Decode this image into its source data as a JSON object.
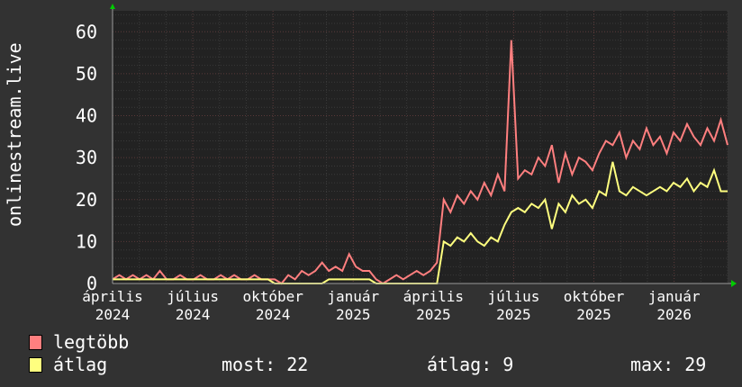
{
  "chart_data": {
    "type": "line",
    "ylabel": "onlinestream.live",
    "ylim": [
      0,
      65
    ],
    "yticks": [
      0,
      10,
      20,
      30,
      40,
      50,
      60
    ],
    "xtick_months": [
      "április",
      "július",
      "október",
      "január",
      "április",
      "július",
      "október",
      "január"
    ],
    "xtick_years": [
      "2024",
      "2024",
      "2024",
      "2025",
      "2025",
      "2025",
      "2025",
      "2026"
    ],
    "grid": true,
    "legend_position": "bottom-left",
    "series": [
      {
        "name": "legtöbb",
        "color": "#ff7f7f",
        "values": [
          1,
          2,
          1,
          2,
          1,
          2,
          1,
          3,
          1,
          1,
          2,
          1,
          1,
          2,
          1,
          1,
          2,
          1,
          2,
          1,
          1,
          2,
          1,
          1,
          1,
          0,
          2,
          1,
          3,
          2,
          3,
          5,
          3,
          4,
          3,
          7,
          4,
          3,
          3,
          1,
          0,
          1,
          2,
          1,
          2,
          3,
          2,
          3,
          5,
          20,
          17,
          21,
          19,
          22,
          20,
          24,
          21,
          26,
          22,
          58,
          25,
          27,
          26,
          30,
          28,
          33,
          24,
          31,
          26,
          30,
          29,
          27,
          31,
          34,
          33,
          36,
          30,
          34,
          32,
          37,
          33,
          35,
          31,
          36,
          34,
          38,
          35,
          33,
          37,
          34,
          39,
          33
        ]
      },
      {
        "name": "átlag",
        "color": "#ffff7f",
        "values": [
          1,
          1,
          1,
          1,
          1,
          1,
          1,
          1,
          1,
          1,
          1,
          1,
          1,
          1,
          1,
          1,
          1,
          1,
          1,
          1,
          1,
          1,
          1,
          1,
          0,
          0,
          0,
          0,
          0,
          0,
          0,
          0,
          1,
          1,
          1,
          1,
          1,
          1,
          1,
          0,
          0,
          0,
          0,
          0,
          0,
          0,
          0,
          0,
          0,
          10,
          9,
          11,
          10,
          12,
          10,
          9,
          11,
          10,
          14,
          17,
          18,
          17,
          19,
          18,
          20,
          13,
          19,
          17,
          21,
          19,
          20,
          18,
          22,
          21,
          29,
          22,
          21,
          23,
          22,
          21,
          22,
          23,
          22,
          24,
          23,
          25,
          22,
          24,
          23,
          27,
          22,
          22
        ]
      }
    ],
    "stats": {
      "most": "most: 22",
      "atlag": "átlag: 9",
      "max": "max: 29"
    }
  }
}
